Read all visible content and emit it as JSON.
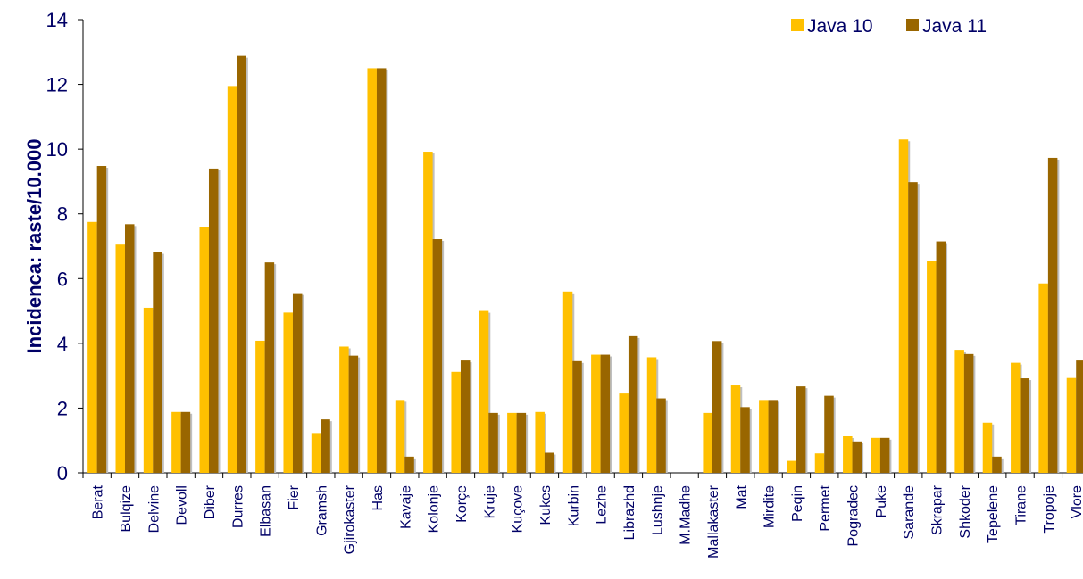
{
  "chart_data": {
    "type": "bar",
    "ylabel": "Incidenca: raste/10.000",
    "xlabel": "",
    "ylim": [
      0,
      14
    ],
    "yticks": [
      0,
      2,
      4,
      6,
      8,
      10,
      12,
      14
    ],
    "legend_position": "top-right",
    "grid": false,
    "categories": [
      "Berat",
      "Bulqize",
      "Delvine",
      "Devoll",
      "Diber",
      "Durres",
      "Elbasan",
      "Fier",
      "Gramsh",
      "Gjirokaster",
      "Has",
      "Kavaje",
      "Kolonje",
      "Korçe",
      "Kruje",
      "Kuçove",
      "Kukes",
      "Kurbin",
      "Lezhe",
      "Librazhd",
      "Lushnje",
      "M.Madhe",
      "Mallakaster",
      "Mat",
      "Mirdite",
      "Peqin",
      "Permet",
      "Pogradec",
      "Puke",
      "Sarande",
      "Skrapar",
      "Shkoder",
      "Tepelene",
      "Tirane",
      "Tropoje",
      "Vlore"
    ],
    "series": [
      {
        "name": "Java 10",
        "color": "#FFC000",
        "values": [
          7.75,
          7.05,
          5.1,
          1.88,
          7.6,
          11.95,
          4.08,
          4.95,
          1.23,
          3.9,
          12.5,
          2.25,
          9.92,
          3.12,
          5.0,
          1.85,
          1.88,
          5.6,
          3.65,
          2.45,
          3.57,
          0,
          1.85,
          2.7,
          2.25,
          0.37,
          0.6,
          1.13,
          1.08,
          10.3,
          6.55,
          3.8,
          1.55,
          3.4,
          5.85,
          2.93
        ]
      },
      {
        "name": "Java 11",
        "color": "#996600",
        "values": [
          9.48,
          7.68,
          6.82,
          1.88,
          9.4,
          12.88,
          6.5,
          5.55,
          1.65,
          3.62,
          12.5,
          0.5,
          7.22,
          3.47,
          1.85,
          1.85,
          0.62,
          3.45,
          3.65,
          4.22,
          2.3,
          0,
          4.07,
          2.03,
          2.25,
          2.67,
          2.38,
          0.97,
          1.08,
          8.98,
          7.15,
          3.67,
          0.5,
          2.92,
          9.73,
          3.47
        ]
      }
    ]
  }
}
